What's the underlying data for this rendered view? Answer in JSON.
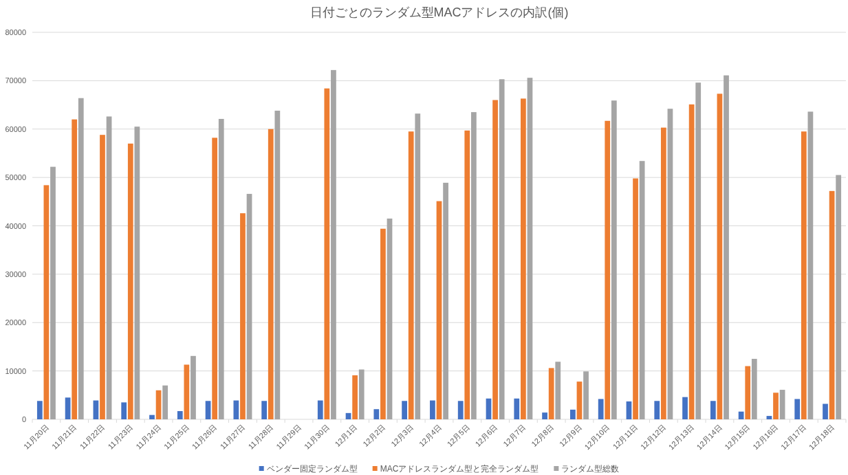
{
  "chart_data": {
    "type": "bar",
    "title": "日付ごとのランダム型MACアドレスの内訳(個)",
    "categories": [
      "11月20日",
      "11月21日",
      "11月22日",
      "11月23日",
      "11月24日",
      "11月25日",
      "11月26日",
      "11月27日",
      "11月28日",
      "11月29日",
      "11月30日",
      "12月1日",
      "12月2日",
      "12月3日",
      "12月4日",
      "12月5日",
      "12月6日",
      "12月7日",
      "12月8日",
      "12月9日",
      "12月10日",
      "12月11日",
      "12月12日",
      "12月13日",
      "12月14日",
      "12月15日",
      "12月16日",
      "12月17日",
      "12月18日"
    ],
    "series": [
      {
        "name": "ベンダー固定ランダム型",
        "color": "#4472c4",
        "values": [
          3800,
          4500,
          3900,
          3500,
          900,
          1700,
          3800,
          3900,
          3800,
          null,
          3900,
          1300,
          2100,
          3800,
          3900,
          3800,
          4300,
          4300,
          1400,
          2000,
          4200,
          3700,
          3800,
          4600,
          3800,
          1600,
          700,
          4200,
          3200
        ]
      },
      {
        "name": "MACアドレスランダム型と完全ランダム型",
        "color": "#ed7d31",
        "values": [
          48400,
          62000,
          58800,
          57000,
          6000,
          11300,
          58200,
          42600,
          60000,
          null,
          68400,
          9100,
          39400,
          59500,
          45100,
          59700,
          66000,
          66300,
          10600,
          7800,
          61700,
          49800,
          60300,
          65100,
          67300,
          11000,
          5500,
          59500,
          47200
        ]
      },
      {
        "name": "ランダム型総数",
        "color": "#a5a5a5",
        "values": [
          52200,
          66400,
          62600,
          60500,
          7000,
          13100,
          62100,
          46600,
          63800,
          null,
          72200,
          10300,
          41500,
          63200,
          48900,
          63500,
          70300,
          70600,
          11900,
          9900,
          65900,
          53400,
          64200,
          69600,
          71100,
          12500,
          6100,
          63600,
          50500
        ]
      }
    ],
    "ylim": [
      0,
      80000
    ],
    "yticks": [
      0,
      10000,
      20000,
      30000,
      40000,
      50000,
      60000,
      70000,
      80000
    ],
    "grid": "y",
    "legend": "bottom"
  }
}
